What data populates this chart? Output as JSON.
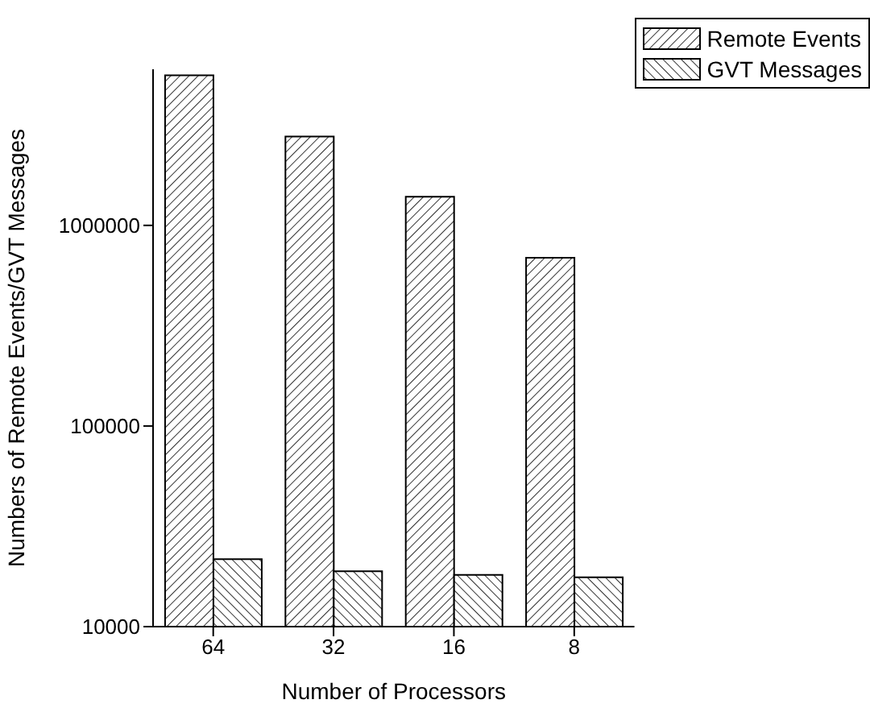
{
  "chart_data": {
    "type": "bar",
    "xlabel": "Number of Processors",
    "ylabel": "Numbers of Remote Events/GVT Messages",
    "categories": [
      "64",
      "32",
      "16",
      "8"
    ],
    "series": [
      {
        "name": "Remote Events",
        "color": "#000000",
        "values": [
          5600000,
          2770000,
          1390000,
          690000
        ]
      },
      {
        "name": "GVT Messages",
        "color": "#000000",
        "values": [
          21700,
          18900,
          18100,
          17600
        ]
      }
    ],
    "log": true,
    "ylim": [
      10000,
      6000000
    ],
    "yticks": [
      10000,
      100000,
      1000000
    ],
    "grid": false,
    "legend": "top right"
  }
}
